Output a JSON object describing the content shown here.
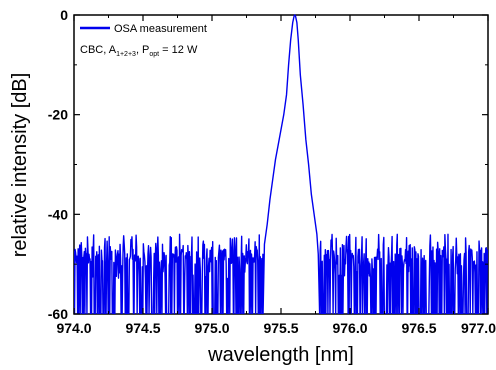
{
  "chart_data": {
    "type": "line",
    "title": "",
    "xlabel": "wavelength [nm]",
    "ylabel": "relative intensity [dB]",
    "xlim": [
      974.0,
      977.0
    ],
    "ylim": [
      -60,
      0
    ],
    "x_ticks": [
      974.0,
      974.5,
      975.0,
      975.5,
      976.0,
      976.5,
      977.0
    ],
    "x_tick_labels": [
      "974.0",
      "974.5",
      "975.0",
      "975.5",
      "976.0",
      "976.5",
      "977.0"
    ],
    "y_ticks": [
      0,
      -20,
      -40,
      -60
    ],
    "y_tick_labels": [
      "0",
      "-20",
      "-40",
      "-60"
    ],
    "grid": false,
    "legend_position": "top-left",
    "legend": {
      "series_label": "OSA measurement",
      "annotation": "CBC, A1+2+3, Popt = 12 W",
      "annotation_parts": {
        "prefix": "CBC, A",
        "a_sub": "1+2+3",
        "mid": ", P",
        "p_sub": "opt",
        "suffix": " = 12 W"
      }
    },
    "series": [
      {
        "name": "OSA measurement",
        "color": "#0000ee",
        "peak": {
          "x": 975.6,
          "y": 0
        },
        "points": [
          [
            975.37,
            -60
          ],
          [
            975.38,
            -46
          ],
          [
            975.4,
            -42
          ],
          [
            975.42,
            -37
          ],
          [
            975.44,
            -33
          ],
          [
            975.46,
            -29
          ],
          [
            975.48,
            -26
          ],
          [
            975.5,
            -23
          ],
          [
            975.52,
            -20
          ],
          [
            975.54,
            -16
          ],
          [
            975.555,
            -10
          ],
          [
            975.57,
            -5
          ],
          [
            975.585,
            -1.5
          ],
          [
            975.595,
            -0.2
          ],
          [
            975.6,
            0
          ],
          [
            975.605,
            -0.2
          ],
          [
            975.615,
            -1.5
          ],
          [
            975.625,
            -5
          ],
          [
            975.64,
            -12
          ],
          [
            975.66,
            -18
          ],
          [
            975.68,
            -25
          ],
          [
            975.7,
            -30
          ],
          [
            975.72,
            -36
          ],
          [
            975.74,
            -40
          ],
          [
            975.76,
            -44
          ],
          [
            975.77,
            -48
          ],
          [
            975.78,
            -60
          ]
        ],
        "noise_floor": {
          "x_range_left": [
            974.0,
            975.37
          ],
          "x_range_right": [
            975.78,
            977.0
          ],
          "y_min": -60,
          "y_max": -44,
          "typical": -47
        }
      }
    ]
  }
}
